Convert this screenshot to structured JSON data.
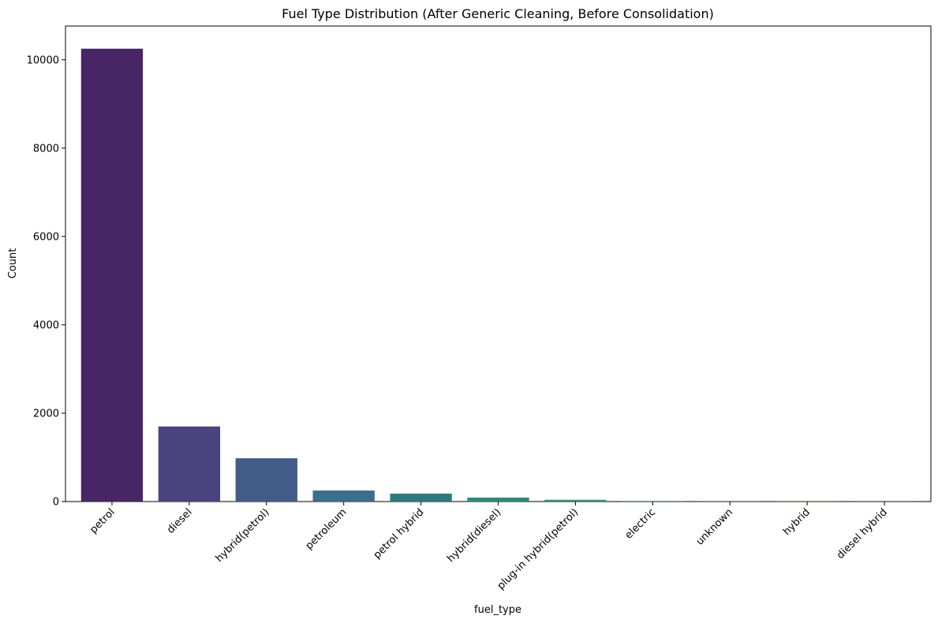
{
  "chart_data": {
    "type": "bar",
    "title": "Fuel Type Distribution (After Generic Cleaning, Before Consolidation)",
    "xlabel": "fuel_type",
    "ylabel": "Count",
    "categories": [
      "petrol",
      "diesel",
      "hybrid(petrol)",
      "petroleum",
      "petrol hybrid",
      "hybrid(diesel)",
      "plug-in hybrid(petrol)",
      "electric",
      "unknown",
      "hybrid",
      "diesel hybrid"
    ],
    "values": [
      10250,
      1700,
      980,
      250,
      180,
      90,
      40,
      3,
      2,
      2,
      1
    ],
    "colors": [
      "#482565",
      "#4a4380",
      "#435b88",
      "#3b6f8c",
      "#2c7a82",
      "#2a8a7c",
      "#2b9470",
      "#3aa560",
      "#5fba4d",
      "#8fcc3c",
      "#c0da3a"
    ],
    "ylim": [
      0,
      10763
    ],
    "yticks": [
      0,
      2000,
      4000,
      6000,
      8000,
      10000
    ],
    "grid": false,
    "legend": "none"
  }
}
